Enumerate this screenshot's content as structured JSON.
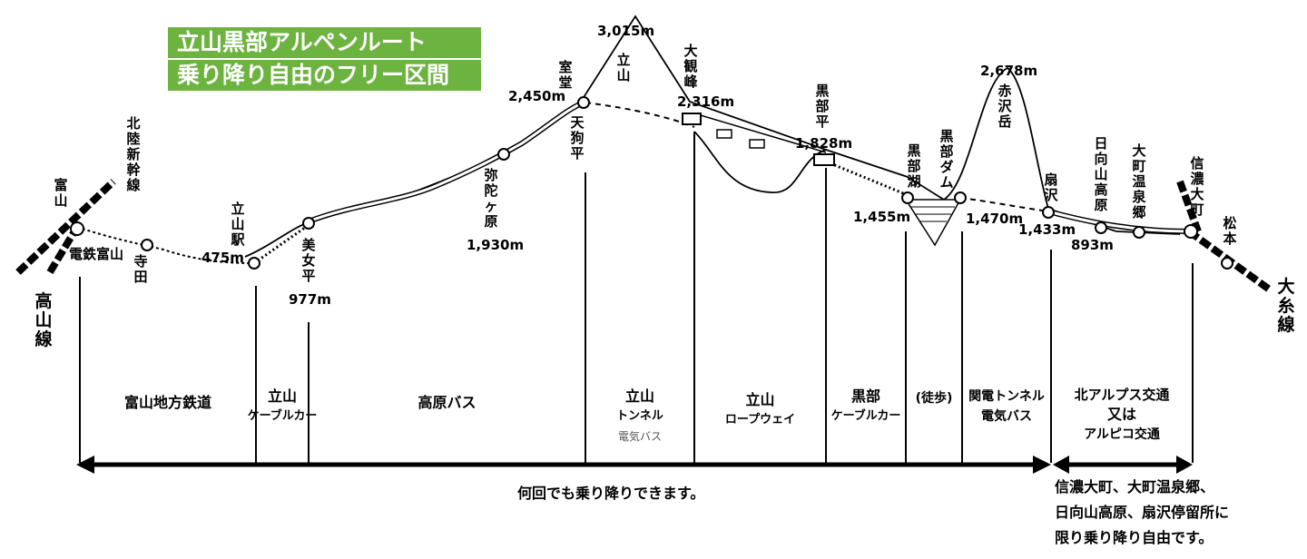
{
  "banner": {
    "line1": "立山黒部アルペンルート",
    "line2": "乗り降り自由のフリー区間",
    "color": "#6cb33f"
  },
  "stations": {
    "toyama": "富山",
    "dentetsu_toyama": "電鉄富山",
    "terada": "寺田",
    "tateyama_eki": "立山駅",
    "bijodaira": "美女平",
    "midagahara": "弥陀ヶ原",
    "murodo": "室堂",
    "tengudaira": "天狗平",
    "tateyama": "立山",
    "daikanbo": "大観峰",
    "kurobedaira": "黒部平",
    "kurobeko": "黒部湖",
    "kurobe_dam": "黒部ダム",
    "akazawadake": "赤沢岳",
    "ogizawa": "扇沢",
    "hinata_yama_kogen": "日向山高原",
    "omachi_onsenkyo": "大町温泉郷",
    "shinano_omachi": "信濃大町",
    "matsumoto": "松本"
  },
  "lines": {
    "hokuriku_shinkansen": "北陸新幹線",
    "takayama_line": "高山線",
    "oito_line": "大糸線"
  },
  "elevations": {
    "tateyama_eki": "475m",
    "bijodaira": "977m",
    "midagahara": "1,930m",
    "murodo": "2,450m",
    "tateyama": "3,015m",
    "daikanbo": "2,316m",
    "kurobedaira": "1,828m",
    "kurobeko": "1,455m",
    "kurobe_dam": "1,470m",
    "akazawadake": "2,678m",
    "ogizawa": "1,433m",
    "shinano_omachi": "893m"
  },
  "segments": {
    "s1": {
      "line1": "富山地方鉄道",
      "line2": ""
    },
    "s2": {
      "line1": "立山",
      "line2": "ケーブルカー"
    },
    "s3": {
      "line1": "高原バス",
      "line2": ""
    },
    "s4": {
      "line1": "立山",
      "line2": "トンネル",
      "line3": "電気バス"
    },
    "s5": {
      "line1": "立山",
      "line2": "ロープウェイ"
    },
    "s6": {
      "line1": "黒部",
      "line2": "ケーブルカー"
    },
    "s7": {
      "line1": "(徒歩)",
      "line2": ""
    },
    "s8": {
      "line1": "関電トンネル",
      "line2": "電気バス"
    },
    "s9": {
      "line1": "北アルプス交通",
      "line2": "又は",
      "line3": "アルピコ交通"
    }
  },
  "notes": {
    "free_zone": "何回でも乗り降りできます。",
    "limited_line1": "信濃大町、大町温泉郷、",
    "limited_line2": "日向山高原、扇沢停留所に",
    "limited_line3": "限り乗り降り自由です。"
  }
}
